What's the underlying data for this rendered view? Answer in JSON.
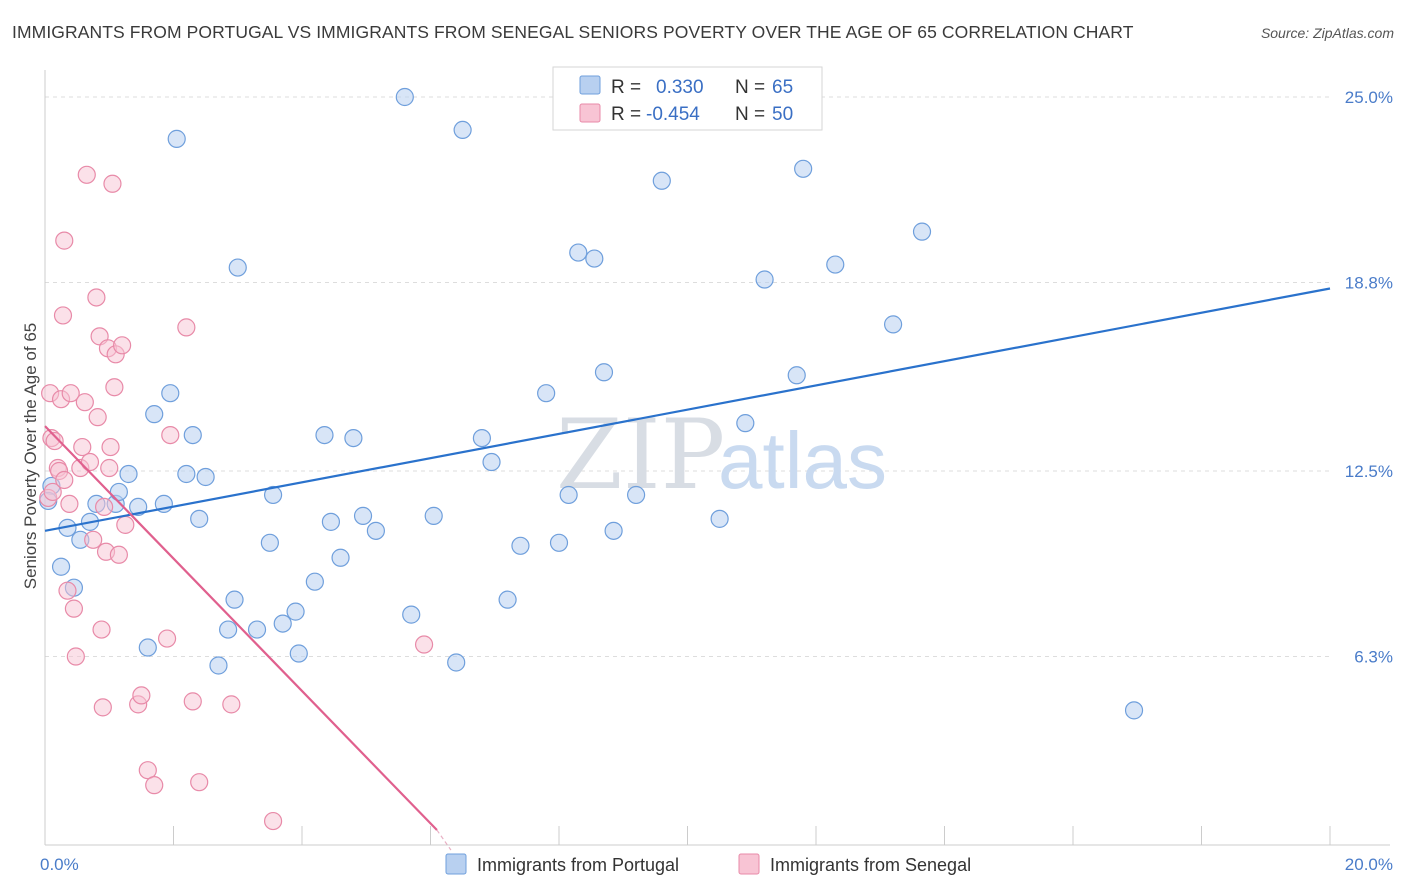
{
  "title": "IMMIGRANTS FROM PORTUGAL VS IMMIGRANTS FROM SENEGAL SENIORS POVERTY OVER THE AGE OF 65 CORRELATION CHART",
  "source": "Source: ZipAtlas.com",
  "watermark": {
    "zip": "ZIP",
    "atlas": "atlas"
  },
  "legend": {
    "r_label": "R =",
    "n_label": "N =",
    "rows": [
      {
        "r": "0.330",
        "n": "65"
      },
      {
        "r": "-0.454",
        "n": "50"
      }
    ]
  },
  "colors": {
    "portugal_fill": "#b8d0f0",
    "portugal_stroke": "#6f9fdc",
    "portugal_line": "#2a72cc",
    "senegal_fill": "#f8c4d4",
    "senegal_stroke": "#e88aa8",
    "senegal_line": "#e0608e"
  },
  "chart_data": {
    "type": "scatter",
    "title": "IMMIGRANTS FROM PORTUGAL VS IMMIGRANTS FROM SENEGAL SENIORS POVERTY OVER THE AGE OF 65 CORRELATION CHART",
    "xlabel": "",
    "ylabel": "Seniors Poverty Over the Age of 65",
    "xlim": [
      0,
      20
    ],
    "ylim": [
      0,
      25
    ],
    "x_tick_labels": [
      {
        "value": 0,
        "label": "0.0%"
      },
      {
        "value": 20,
        "label": "20.0%"
      }
    ],
    "y_ticks": [
      {
        "value": 6.3,
        "label": "6.3%"
      },
      {
        "value": 12.5,
        "label": "12.5%"
      },
      {
        "value": 18.8,
        "label": "18.8%"
      },
      {
        "value": 25.0,
        "label": "25.0%"
      }
    ],
    "grid": true,
    "legend_position": "top-center",
    "series": [
      {
        "name": "Immigrants from Portugal",
        "r": 0.33,
        "n": 65,
        "trend": [
          [
            0,
            10.5
          ],
          [
            20,
            18.6
          ]
        ],
        "points": [
          [
            0.1,
            12.0
          ],
          [
            0.25,
            9.3
          ],
          [
            0.35,
            10.6
          ],
          [
            0.45,
            8.6
          ],
          [
            0.55,
            10.2
          ],
          [
            0.7,
            10.8
          ],
          [
            0.8,
            11.4
          ],
          [
            1.1,
            11.4
          ],
          [
            1.15,
            11.8
          ],
          [
            1.3,
            12.4
          ],
          [
            1.45,
            11.3
          ],
          [
            1.6,
            6.6
          ],
          [
            1.7,
            14.4
          ],
          [
            1.85,
            11.4
          ],
          [
            1.95,
            15.1
          ],
          [
            2.05,
            23.6
          ],
          [
            2.2,
            12.4
          ],
          [
            2.3,
            13.7
          ],
          [
            2.4,
            10.9
          ],
          [
            2.5,
            12.3
          ],
          [
            2.7,
            6.0
          ],
          [
            2.85,
            7.2
          ],
          [
            2.95,
            8.2
          ],
          [
            3.0,
            19.3
          ],
          [
            3.3,
            7.2
          ],
          [
            3.5,
            10.1
          ],
          [
            3.55,
            11.7
          ],
          [
            3.7,
            7.4
          ],
          [
            3.9,
            7.8
          ],
          [
            3.95,
            6.4
          ],
          [
            4.2,
            8.8
          ],
          [
            4.35,
            13.7
          ],
          [
            4.45,
            10.8
          ],
          [
            4.6,
            9.6
          ],
          [
            4.8,
            13.6
          ],
          [
            4.95,
            11.0
          ],
          [
            5.15,
            10.5
          ],
          [
            5.6,
            25.0
          ],
          [
            5.7,
            7.7
          ],
          [
            6.05,
            11.0
          ],
          [
            6.4,
            6.1
          ],
          [
            6.5,
            23.9
          ],
          [
            6.8,
            13.6
          ],
          [
            6.95,
            12.8
          ],
          [
            7.2,
            8.2
          ],
          [
            7.4,
            10.0
          ],
          [
            7.8,
            15.1
          ],
          [
            8.0,
            10.1
          ],
          [
            8.15,
            11.7
          ],
          [
            8.3,
            19.8
          ],
          [
            8.55,
            19.6
          ],
          [
            8.7,
            15.8
          ],
          [
            8.85,
            10.5
          ],
          [
            9.2,
            11.7
          ],
          [
            9.6,
            22.2
          ],
          [
            10.5,
            10.9
          ],
          [
            10.9,
            14.1
          ],
          [
            11.2,
            18.9
          ],
          [
            11.7,
            15.7
          ],
          [
            11.8,
            22.6
          ],
          [
            12.3,
            19.4
          ],
          [
            13.2,
            17.4
          ],
          [
            13.65,
            20.5
          ],
          [
            16.95,
            4.5
          ],
          [
            0.05,
            11.5
          ]
        ]
      },
      {
        "name": "Immigrants from Senegal",
        "r": -0.454,
        "n": 50,
        "trend": [
          [
            0,
            14.0
          ],
          [
            6.1,
            0.5
          ]
        ],
        "points": [
          [
            0.05,
            11.6
          ],
          [
            0.08,
            15.1
          ],
          [
            0.1,
            13.6
          ],
          [
            0.15,
            13.5
          ],
          [
            0.2,
            12.6
          ],
          [
            0.22,
            12.5
          ],
          [
            0.25,
            14.9
          ],
          [
            0.28,
            17.7
          ],
          [
            0.3,
            20.2
          ],
          [
            0.35,
            8.5
          ],
          [
            0.38,
            11.4
          ],
          [
            0.4,
            15.1
          ],
          [
            0.45,
            7.9
          ],
          [
            0.48,
            6.3
          ],
          [
            0.55,
            12.6
          ],
          [
            0.58,
            13.3
          ],
          [
            0.62,
            14.8
          ],
          [
            0.65,
            22.4
          ],
          [
            0.7,
            12.8
          ],
          [
            0.75,
            10.2
          ],
          [
            0.8,
            18.3
          ],
          [
            0.82,
            14.3
          ],
          [
            0.85,
            17.0
          ],
          [
            0.88,
            7.2
          ],
          [
            0.9,
            4.6
          ],
          [
            0.92,
            11.3
          ],
          [
            0.95,
            9.8
          ],
          [
            0.98,
            16.6
          ],
          [
            1.0,
            12.6
          ],
          [
            1.02,
            13.3
          ],
          [
            1.05,
            22.1
          ],
          [
            1.08,
            15.3
          ],
          [
            1.1,
            16.4
          ],
          [
            1.15,
            9.7
          ],
          [
            1.2,
            16.7
          ],
          [
            1.25,
            10.7
          ],
          [
            1.45,
            4.7
          ],
          [
            1.5,
            5.0
          ],
          [
            1.6,
            2.5
          ],
          [
            1.7,
            2.0
          ],
          [
            1.9,
            6.9
          ],
          [
            1.95,
            13.7
          ],
          [
            2.2,
            17.3
          ],
          [
            2.3,
            4.8
          ],
          [
            2.4,
            2.1
          ],
          [
            2.9,
            4.7
          ],
          [
            3.55,
            0.8
          ],
          [
            5.9,
            6.7
          ],
          [
            0.12,
            11.8
          ],
          [
            0.3,
            12.2
          ]
        ]
      }
    ]
  }
}
